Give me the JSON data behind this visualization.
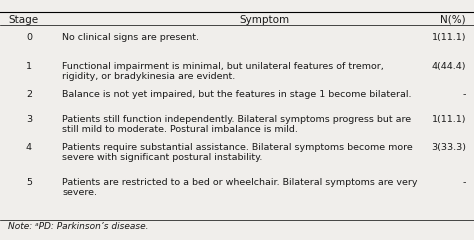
{
  "title_cols": [
    "Stage",
    "Symptom",
    "N(%)"
  ],
  "rows": [
    {
      "stage": "0",
      "symptom_line1": "No clinical signs are present.",
      "symptom_line2": "",
      "n": "1(11.1)"
    },
    {
      "stage": "1",
      "symptom_line1": "Functional impairment is minimal, but unilateral features of tremor,",
      "symptom_line2": "rigidity, or bradykinesia are evident.",
      "n": "4(44.4)"
    },
    {
      "stage": "2",
      "symptom_line1": "Balance is not yet impaired, but the features in stage 1 become bilateral.",
      "symptom_line2": "",
      "n": "-"
    },
    {
      "stage": "3",
      "symptom_line1": "Patients still function independently. Bilateral symptoms progress but are",
      "symptom_line2": "still mild to moderate. Postural imbalance is mild.",
      "n": "1(11.1)"
    },
    {
      "stage": "4",
      "symptom_line1": "Patients require substantial assistance. Bilateral symptoms become more",
      "symptom_line2": "severe with significant postural instability.",
      "n": "3(33.3)"
    },
    {
      "stage": "5",
      "symptom_line1": "Patients are restricted to a bed or wheelchair. Bilateral symptoms are very",
      "symptom_line2": "severe.",
      "n": "-"
    }
  ],
  "note": "Note: ᵃPD: Parkinson’s disease.",
  "bg_color": "#f0eeeb",
  "text_color": "#1a1a1a",
  "header_fontsize": 7.5,
  "body_fontsize": 6.8,
  "note_fontsize": 6.5
}
